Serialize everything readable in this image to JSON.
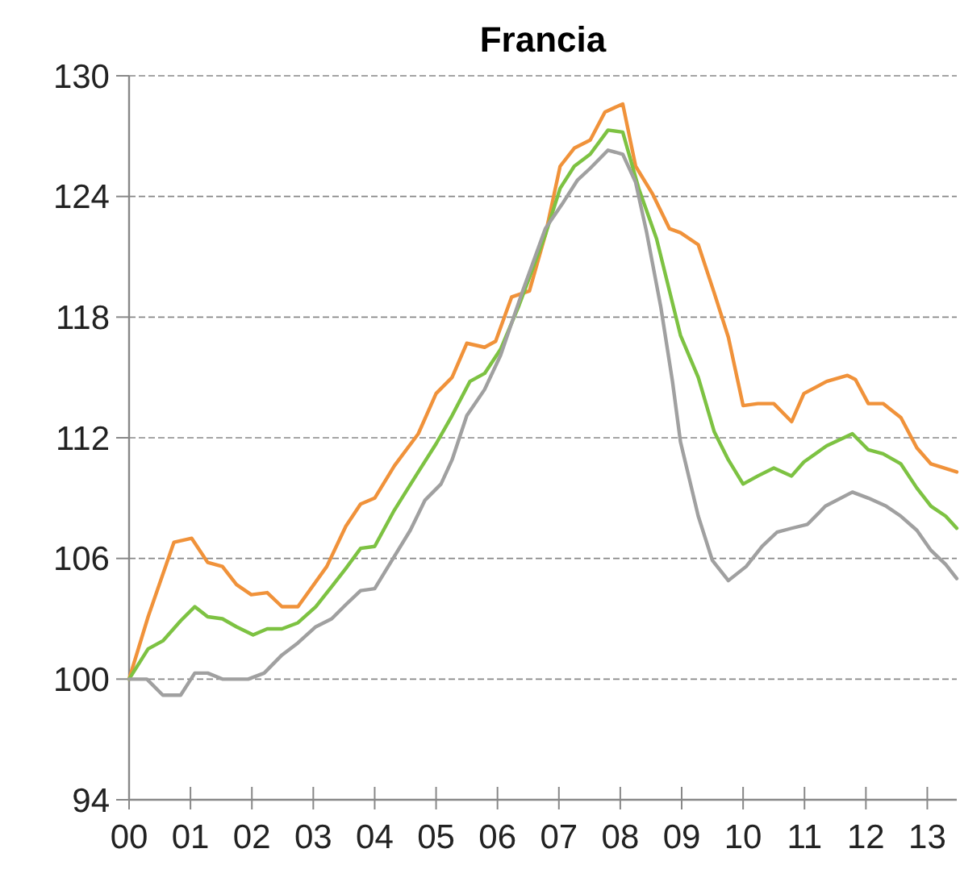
{
  "chart_data": {
    "type": "line",
    "title": "Francia",
    "xlim": [
      0,
      13.48
    ],
    "xticks": [
      {
        "value": 0,
        "label": "00"
      },
      {
        "value": 1,
        "label": "01"
      },
      {
        "value": 2,
        "label": "02"
      },
      {
        "value": 3,
        "label": "03"
      },
      {
        "value": 4,
        "label": "04"
      },
      {
        "value": 5,
        "label": "05"
      },
      {
        "value": 6,
        "label": "06"
      },
      {
        "value": 7,
        "label": "07"
      },
      {
        "value": 8,
        "label": "08"
      },
      {
        "value": 9,
        "label": "09"
      },
      {
        "value": 10,
        "label": "10"
      },
      {
        "value": 11,
        "label": "11"
      },
      {
        "value": 12,
        "label": "12"
      },
      {
        "value": 13,
        "label": "13"
      }
    ],
    "ylim": [
      94,
      130
    ],
    "yticks": [
      94,
      100,
      106,
      112,
      118,
      124,
      130
    ],
    "grid": "y",
    "marker": "none",
    "line_style": "solid",
    "series": [
      {
        "color": "#f0923a",
        "x": [
          0,
          0.31,
          0.73,
          1.02,
          1.28,
          1.52,
          1.75,
          1.99,
          2.25,
          2.49,
          2.75,
          3.22,
          3.53,
          3.77,
          4.0,
          4.32,
          4.71,
          5.0,
          5.26,
          5.5,
          5.79,
          5.97,
          6.23,
          6.52,
          6.78,
          7.02,
          7.25,
          7.51,
          7.75,
          8.04,
          8.25,
          8.53,
          8.8,
          8.98,
          9.27,
          9.53,
          9.76,
          10.0,
          10.24,
          10.5,
          10.79,
          10.99,
          11.36,
          11.7,
          11.83,
          12.04,
          12.28,
          12.57,
          12.83,
          13.06,
          13.48
        ],
        "values": [
          100,
          103.1,
          106.8,
          107,
          105.8,
          105.6,
          104.7,
          104.2,
          104.3,
          103.6,
          103.6,
          105.6,
          107.6,
          108.7,
          109,
          110.6,
          112.2,
          114.2,
          115,
          116.7,
          116.5,
          116.8,
          119,
          119.3,
          122.1,
          125.5,
          126.4,
          126.8,
          128.2,
          128.6,
          125.5,
          124.1,
          122.4,
          122.2,
          121.6,
          119.2,
          117,
          113.6,
          113.7,
          113.7,
          112.8,
          114.2,
          114.8,
          115.1,
          114.9,
          113.7,
          113.7,
          113,
          111.5,
          110.7,
          110.3
        ]
      },
      {
        "color": "#7dc242",
        "x": [
          0,
          0.31,
          0.55,
          0.84,
          1.07,
          1.28,
          1.52,
          1.75,
          2.02,
          2.25,
          2.49,
          2.75,
          3.04,
          3.3,
          3.53,
          3.77,
          4.0,
          4.32,
          4.71,
          5.0,
          5.26,
          5.55,
          5.79,
          6.05,
          6.34,
          6.78,
          7.02,
          7.25,
          7.51,
          7.8,
          8.04,
          8.3,
          8.59,
          8.98,
          9.27,
          9.53,
          9.76,
          10.0,
          10.24,
          10.5,
          10.79,
          10.99,
          11.36,
          11.78,
          12.04,
          12.28,
          12.57,
          12.83,
          13.06,
          13.3,
          13.48
        ],
        "values": [
          100,
          101.5,
          101.9,
          102.9,
          103.6,
          103.1,
          103,
          102.6,
          102.2,
          102.5,
          102.5,
          102.8,
          103.6,
          104.6,
          105.5,
          106.5,
          106.6,
          108.4,
          110.3,
          111.7,
          113.1,
          114.8,
          115.2,
          116.4,
          118.5,
          122.1,
          124.4,
          125.5,
          126.1,
          127.3,
          127.2,
          124.4,
          121.9,
          117.1,
          115,
          112.3,
          110.9,
          109.7,
          110.1,
          110.5,
          110.1,
          110.8,
          111.6,
          112.2,
          111.4,
          111.2,
          110.7,
          109.5,
          108.6,
          108.1,
          107.5
        ]
      },
      {
        "color": "#a0a0a0",
        "x": [
          0,
          0.29,
          0.55,
          0.84,
          1.07,
          1.28,
          1.52,
          1.94,
          2.2,
          2.49,
          2.75,
          3.04,
          3.3,
          3.53,
          3.77,
          4.0,
          4.32,
          4.58,
          4.82,
          5.08,
          5.26,
          5.5,
          5.79,
          6.05,
          6.41,
          6.78,
          7.07,
          7.3,
          7.51,
          7.8,
          8.04,
          8.25,
          8.43,
          8.66,
          8.85,
          8.98,
          9.27,
          9.5,
          9.76,
          10.05,
          10.31,
          10.55,
          10.79,
          11.05,
          11.34,
          11.78,
          12.04,
          12.33,
          12.57,
          12.83,
          13.06,
          13.3,
          13.48
        ],
        "values": [
          100,
          100,
          99.2,
          99.2,
          100.3,
          100.3,
          100,
          100,
          100.3,
          101.2,
          101.8,
          102.6,
          103,
          103.7,
          104.4,
          104.5,
          106.1,
          107.4,
          108.9,
          109.7,
          110.9,
          113.1,
          114.4,
          116.1,
          119.3,
          122.4,
          123.7,
          124.8,
          125.4,
          126.3,
          126.1,
          124.7,
          122.2,
          118.5,
          114.8,
          111.8,
          108.1,
          105.9,
          104.9,
          105.6,
          106.6,
          107.3,
          107.5,
          107.7,
          108.6,
          109.3,
          109,
          108.6,
          108.1,
          107.4,
          106.4,
          105.7,
          105
        ]
      }
    ]
  }
}
